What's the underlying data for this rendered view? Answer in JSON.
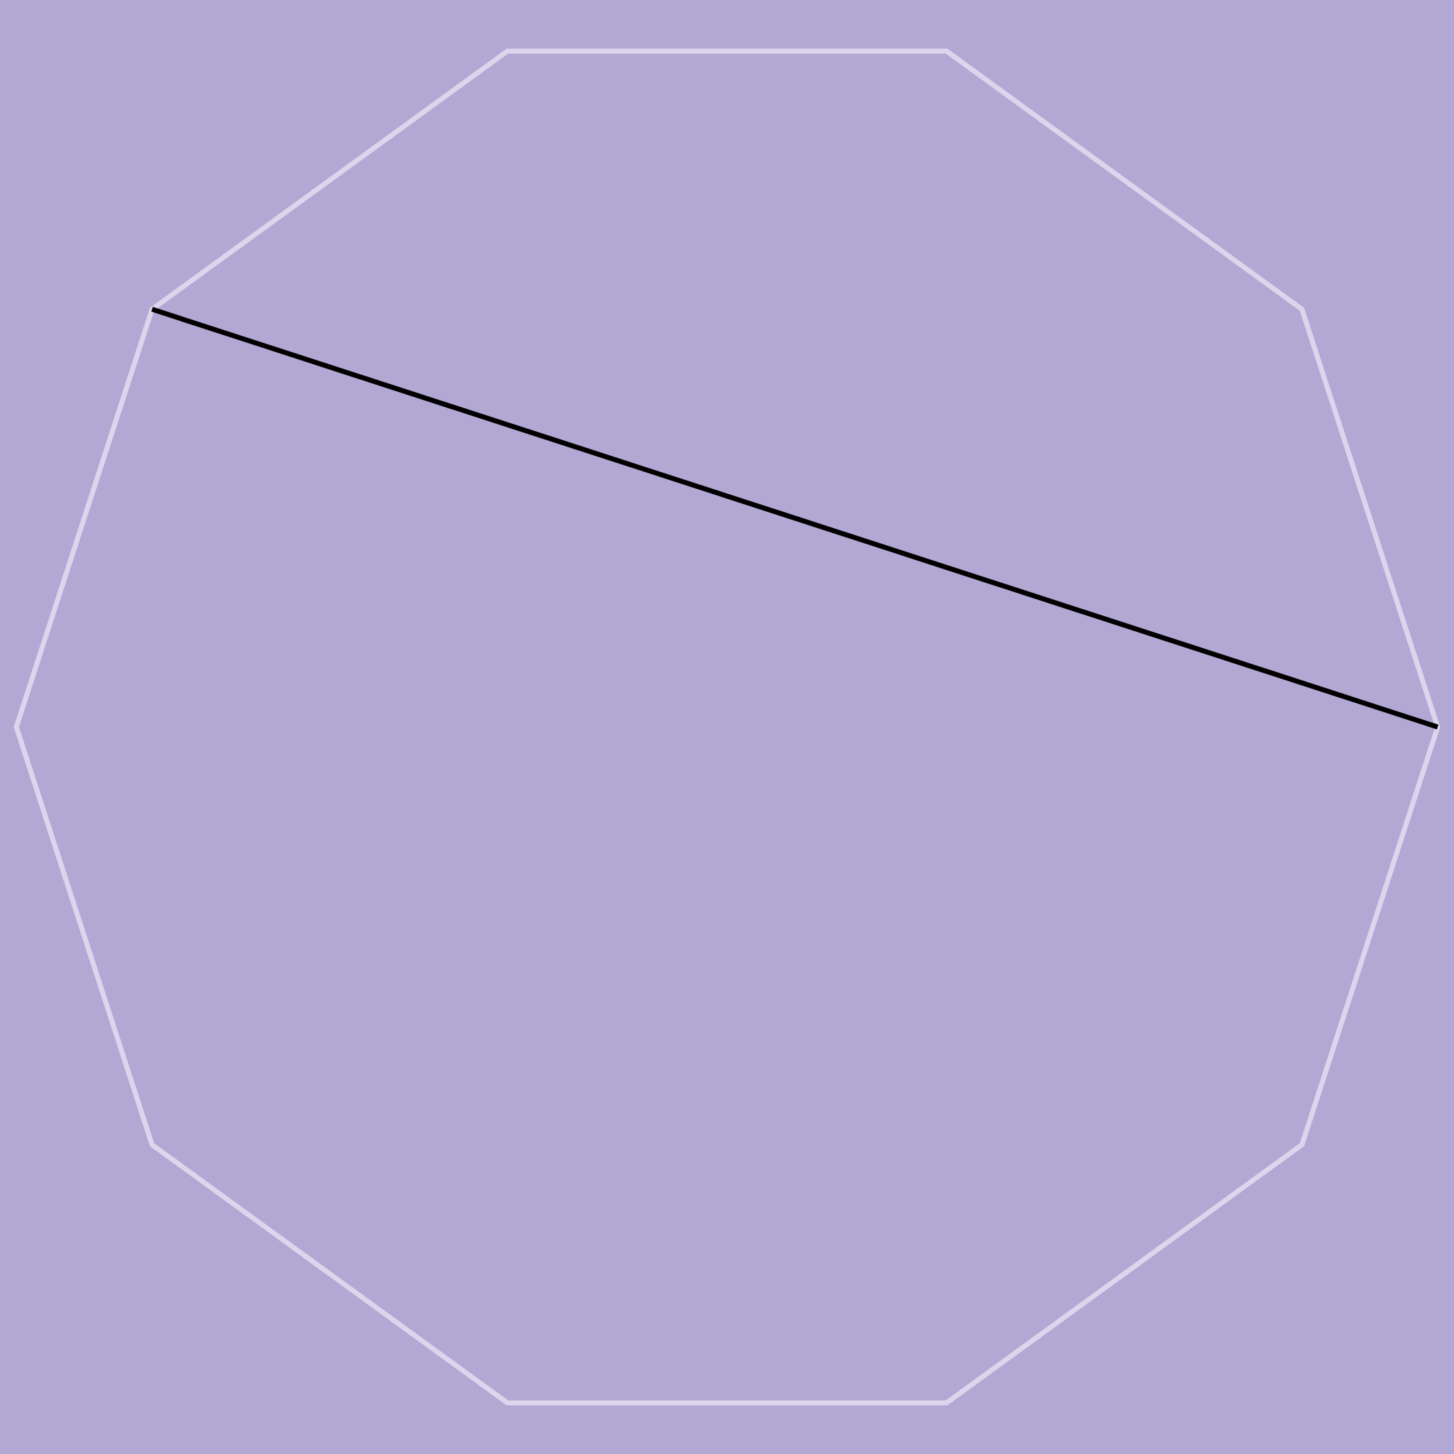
{
  "diagram": {
    "shape": "regular decagon",
    "sides": 10,
    "diagonal": {
      "from_vertex": 0,
      "to_vertex": 6
    },
    "colors": {
      "background": "#b3a8d4",
      "polygon_stroke": "#dcd6ec",
      "diagonal_stroke": "#000000"
    }
  }
}
